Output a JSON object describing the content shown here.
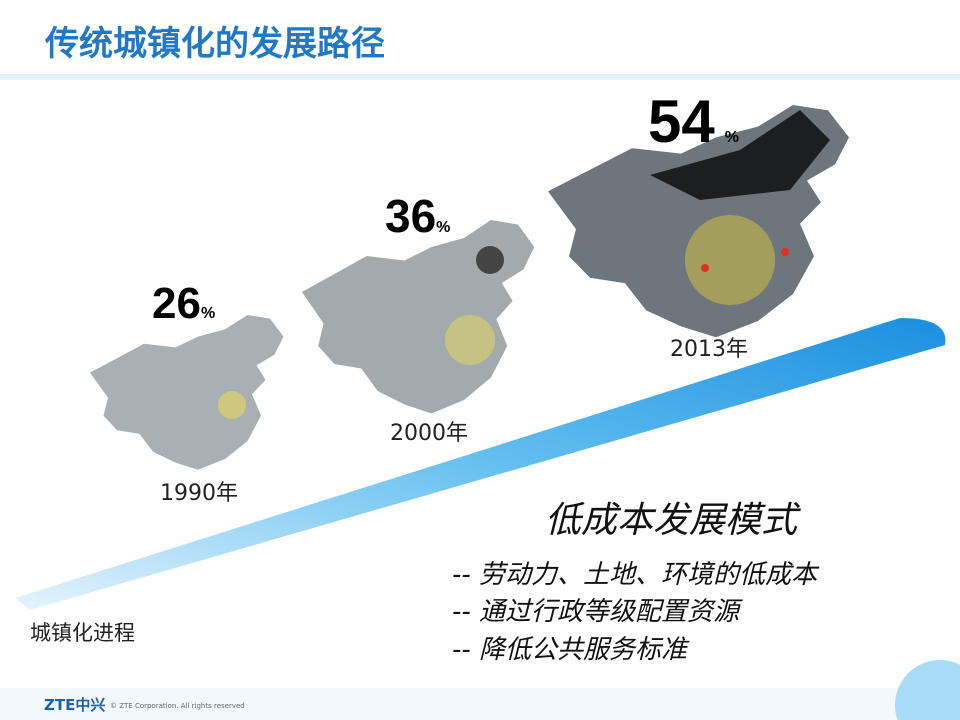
{
  "header": {
    "title": "传统城镇化的发展路径"
  },
  "stages": [
    {
      "year": "1990年",
      "value": "26",
      "unit": "%"
    },
    {
      "year": "2000年",
      "value": "36",
      "unit": "%"
    },
    {
      "year": "2013年",
      "value": "54",
      "unit": "%"
    }
  ],
  "arrow_label": "城镇化进程",
  "model": {
    "heading": "低成本发展模式",
    "points": [
      "-- 劳动力、土地、环境的低成本",
      "-- 通过行政等级配置资源",
      "-- 降低公共服务标准"
    ]
  },
  "footer": {
    "logo": "ZTE中兴",
    "copyright": "© ZTE Corporation. All rights reserved"
  }
}
